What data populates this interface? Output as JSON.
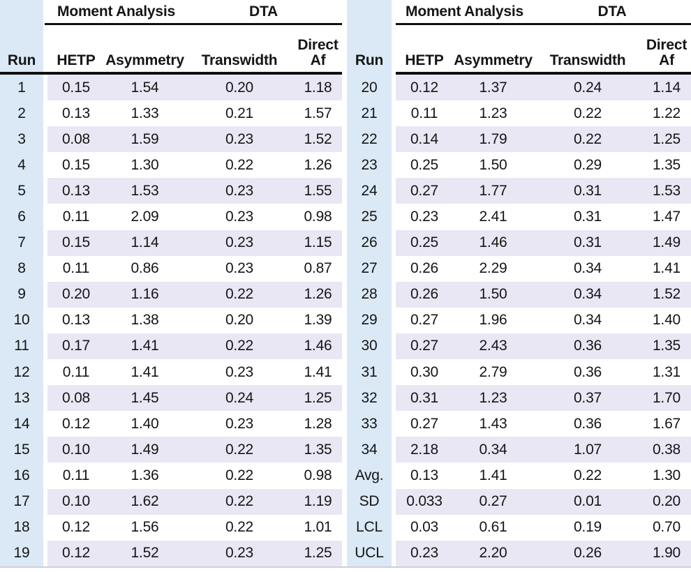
{
  "table": {
    "group_headers": [
      "Moment Analysis",
      "DTA"
    ],
    "column_headers": {
      "run": "Run",
      "hetp": "HETP",
      "asymmetry": "Asymmetry",
      "transwidth": "Transwidth",
      "direct_af_line1": "Direct",
      "direct_af_line2": "Af"
    },
    "colors": {
      "run_column_bg": "#dbe9f6",
      "alt_row_bg": "#eae7f4",
      "rule": "#101010",
      "bottom_rule": "#cfced9"
    }
  },
  "panels": [
    {
      "side": "left",
      "rows": [
        {
          "run": "1",
          "hetp": "0.15",
          "asymmetry": "1.54",
          "transwidth": "0.20",
          "direct_af": "1.18"
        },
        {
          "run": "2",
          "hetp": "0.13",
          "asymmetry": "1.33",
          "transwidth": "0.21",
          "direct_af": "1.57"
        },
        {
          "run": "3",
          "hetp": "0.08",
          "asymmetry": "1.59",
          "transwidth": "0.23",
          "direct_af": "1.52"
        },
        {
          "run": "4",
          "hetp": "0.15",
          "asymmetry": "1.30",
          "transwidth": "0.22",
          "direct_af": "1.26"
        },
        {
          "run": "5",
          "hetp": "0.13",
          "asymmetry": "1.53",
          "transwidth": "0.23",
          "direct_af": "1.55"
        },
        {
          "run": "6",
          "hetp": "0.11",
          "asymmetry": "2.09",
          "transwidth": "0.23",
          "direct_af": "0.98"
        },
        {
          "run": "7",
          "hetp": "0.15",
          "asymmetry": "1.14",
          "transwidth": "0.23",
          "direct_af": "1.15"
        },
        {
          "run": "8",
          "hetp": "0.11",
          "asymmetry": "0.86",
          "transwidth": "0.23",
          "direct_af": "0.87"
        },
        {
          "run": "9",
          "hetp": "0.20",
          "asymmetry": "1.16",
          "transwidth": "0.22",
          "direct_af": "1.26"
        },
        {
          "run": "10",
          "hetp": "0.13",
          "asymmetry": "1.38",
          "transwidth": "0.20",
          "direct_af": "1.39"
        },
        {
          "run": "11",
          "hetp": "0.17",
          "asymmetry": "1.41",
          "transwidth": "0.22",
          "direct_af": "1.46"
        },
        {
          "run": "12",
          "hetp": "0.11",
          "asymmetry": "1.41",
          "transwidth": "0.23",
          "direct_af": "1.41"
        },
        {
          "run": "13",
          "hetp": "0.08",
          "asymmetry": "1.45",
          "transwidth": "0.24",
          "direct_af": "1.25"
        },
        {
          "run": "14",
          "hetp": "0.12",
          "asymmetry": "1.40",
          "transwidth": "0.23",
          "direct_af": "1.28"
        },
        {
          "run": "15",
          "hetp": "0.10",
          "asymmetry": "1.49",
          "transwidth": "0.22",
          "direct_af": "1.35"
        },
        {
          "run": "16",
          "hetp": "0.11",
          "asymmetry": "1.36",
          "transwidth": "0.22",
          "direct_af": "0.98"
        },
        {
          "run": "17",
          "hetp": "0.10",
          "asymmetry": "1.62",
          "transwidth": "0.22",
          "direct_af": "1.19"
        },
        {
          "run": "18",
          "hetp": "0.12",
          "asymmetry": "1.56",
          "transwidth": "0.22",
          "direct_af": "1.01"
        },
        {
          "run": "19",
          "hetp": "0.12",
          "asymmetry": "1.52",
          "transwidth": "0.23",
          "direct_af": "1.25"
        }
      ]
    },
    {
      "side": "right",
      "rows": [
        {
          "run": "20",
          "hetp": "0.12",
          "asymmetry": "1.37",
          "transwidth": "0.24",
          "direct_af": "1.14"
        },
        {
          "run": "21",
          "hetp": "0.11",
          "asymmetry": "1.23",
          "transwidth": "0.22",
          "direct_af": "1.22"
        },
        {
          "run": "22",
          "hetp": "0.14",
          "asymmetry": "1.79",
          "transwidth": "0.22",
          "direct_af": "1.25"
        },
        {
          "run": "23",
          "hetp": "0.25",
          "asymmetry": "1.50",
          "transwidth": "0.29",
          "direct_af": "1.35"
        },
        {
          "run": "24",
          "hetp": "0.27",
          "asymmetry": "1.77",
          "transwidth": "0.31",
          "direct_af": "1.53"
        },
        {
          "run": "25",
          "hetp": "0.23",
          "asymmetry": "2.41",
          "transwidth": "0.31",
          "direct_af": "1.47"
        },
        {
          "run": "26",
          "hetp": "0.25",
          "asymmetry": "1.46",
          "transwidth": "0.31",
          "direct_af": "1.49"
        },
        {
          "run": "27",
          "hetp": "0.26",
          "asymmetry": "2.29",
          "transwidth": "0.34",
          "direct_af": "1.41"
        },
        {
          "run": "28",
          "hetp": "0.26",
          "asymmetry": "1.50",
          "transwidth": "0.34",
          "direct_af": "1.52"
        },
        {
          "run": "29",
          "hetp": "0.27",
          "asymmetry": "1.96",
          "transwidth": "0.34",
          "direct_af": "1.40"
        },
        {
          "run": "30",
          "hetp": "0.27",
          "asymmetry": "2.43",
          "transwidth": "0.36",
          "direct_af": "1.35"
        },
        {
          "run": "31",
          "hetp": "0.30",
          "asymmetry": "2.79",
          "transwidth": "0.36",
          "direct_af": "1.31"
        },
        {
          "run": "32",
          "hetp": "0.31",
          "asymmetry": "1.23",
          "transwidth": "0.37",
          "direct_af": "1.70"
        },
        {
          "run": "33",
          "hetp": "0.27",
          "asymmetry": "1.43",
          "transwidth": "0.36",
          "direct_af": "1.67"
        },
        {
          "run": "34",
          "hetp": "2.18",
          "asymmetry": "0.34",
          "transwidth": "1.07",
          "direct_af": "0.38"
        },
        {
          "run": "Avg.",
          "hetp": "0.13",
          "asymmetry": "1.41",
          "transwidth": "0.22",
          "direct_af": "1.30"
        },
        {
          "run": "SD",
          "hetp": "0.033",
          "asymmetry": "0.27",
          "transwidth": "0.01",
          "direct_af": "0.20"
        },
        {
          "run": "LCL",
          "hetp": "0.03",
          "asymmetry": "0.61",
          "transwidth": "0.19",
          "direct_af": "0.70"
        },
        {
          "run": "UCL",
          "hetp": "0.23",
          "asymmetry": "2.20",
          "transwidth": "0.26",
          "direct_af": "1.90"
        }
      ]
    }
  ]
}
